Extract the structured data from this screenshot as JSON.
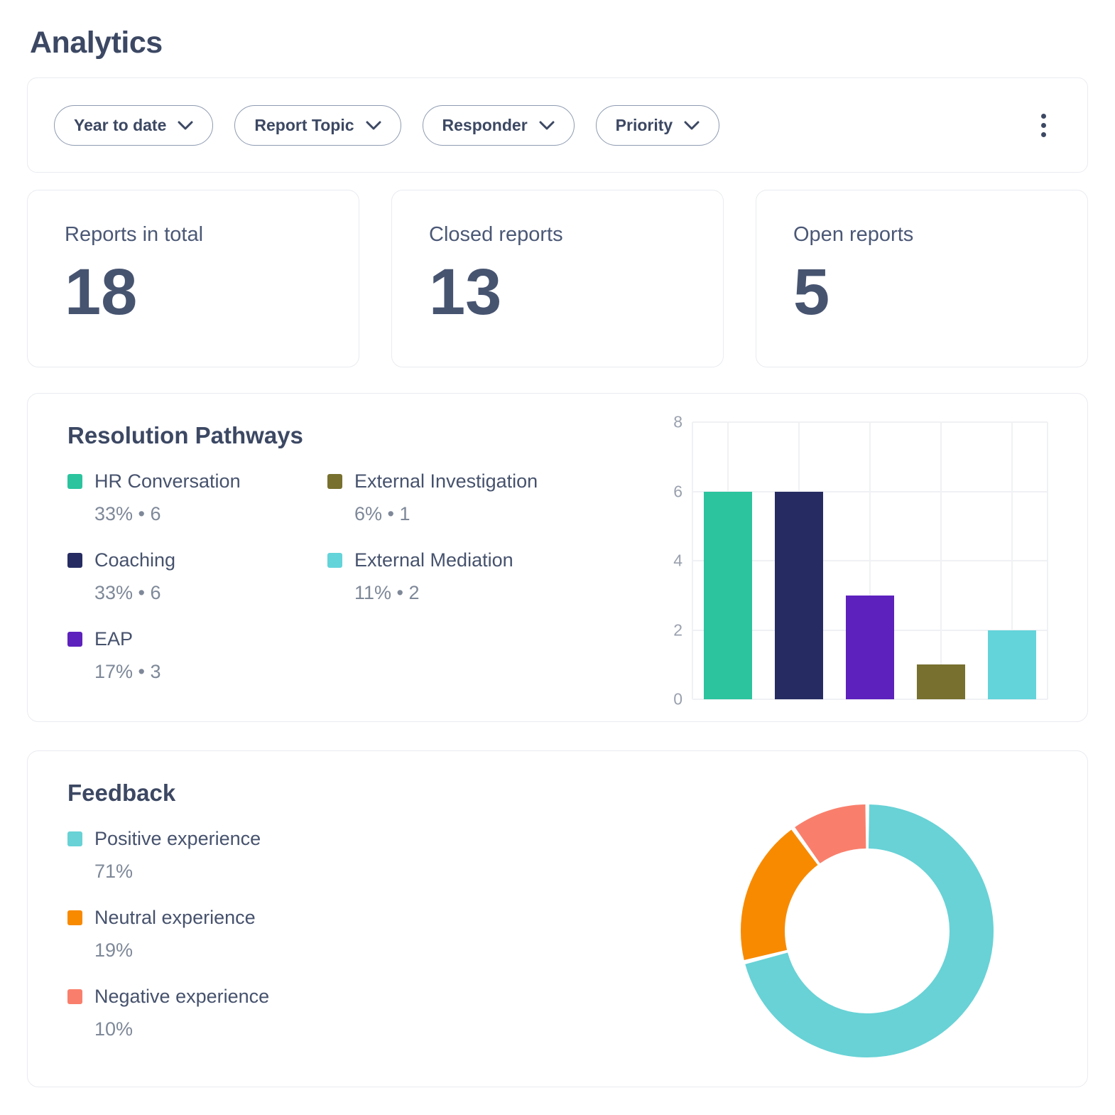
{
  "page": {
    "title": "Analytics"
  },
  "filters": {
    "pills": [
      {
        "label": "Year to date"
      },
      {
        "label": "Report Topic"
      },
      {
        "label": "Responder"
      },
      {
        "label": "Priority"
      }
    ],
    "menu_icon": "kebab-vertical-icon"
  },
  "stats": [
    {
      "label": "Reports in total",
      "value": "18"
    },
    {
      "label": "Closed reports",
      "value": "13"
    },
    {
      "label": "Open reports",
      "value": "5"
    }
  ],
  "resolution_pathways": {
    "title": "Resolution Pathways"
  },
  "feedback": {
    "title": "Feedback"
  },
  "theme": {
    "text_dark": "#3c4863",
    "text_muted": "#7e8898",
    "axis_text": "#9aa1ae",
    "card_border": "#e9ebf0",
    "pill_border": "#8e9bb1",
    "gridline": "#f0f1f4"
  },
  "chart_data": [
    {
      "type": "bar",
      "title": "Resolution Pathways",
      "categories": [
        "HR Conversation",
        "Coaching",
        "EAP",
        "External Investigation",
        "External Mediation"
      ],
      "values": [
        6,
        6,
        3,
        1,
        2
      ],
      "detail_labels": [
        "33% • 6",
        "33% • 6",
        "17% • 3",
        "6% • 1",
        "11% • 2"
      ],
      "percents": [
        33,
        33,
        17,
        6,
        11
      ],
      "colors": [
        "#2bc49e",
        "#262c62",
        "#5d21bd",
        "#77702f",
        "#63d4da"
      ],
      "xlabel": "",
      "ylabel": "",
      "ylim": [
        0,
        8
      ],
      "yticks": [
        0,
        2,
        4,
        6,
        8
      ],
      "grid": true,
      "legend_position": "left"
    },
    {
      "type": "donut",
      "title": "Feedback",
      "categories": [
        "Positive experience",
        "Neutral experience",
        "Negative experience"
      ],
      "values": [
        71,
        19,
        10
      ],
      "percent_labels": [
        "71%",
        "19%",
        "10%"
      ],
      "colors": [
        "#68d2d6",
        "#f88a00",
        "#f97f6c"
      ],
      "start_angle_deg": 0,
      "direction": "clockwise",
      "legend_position": "left"
    }
  ]
}
